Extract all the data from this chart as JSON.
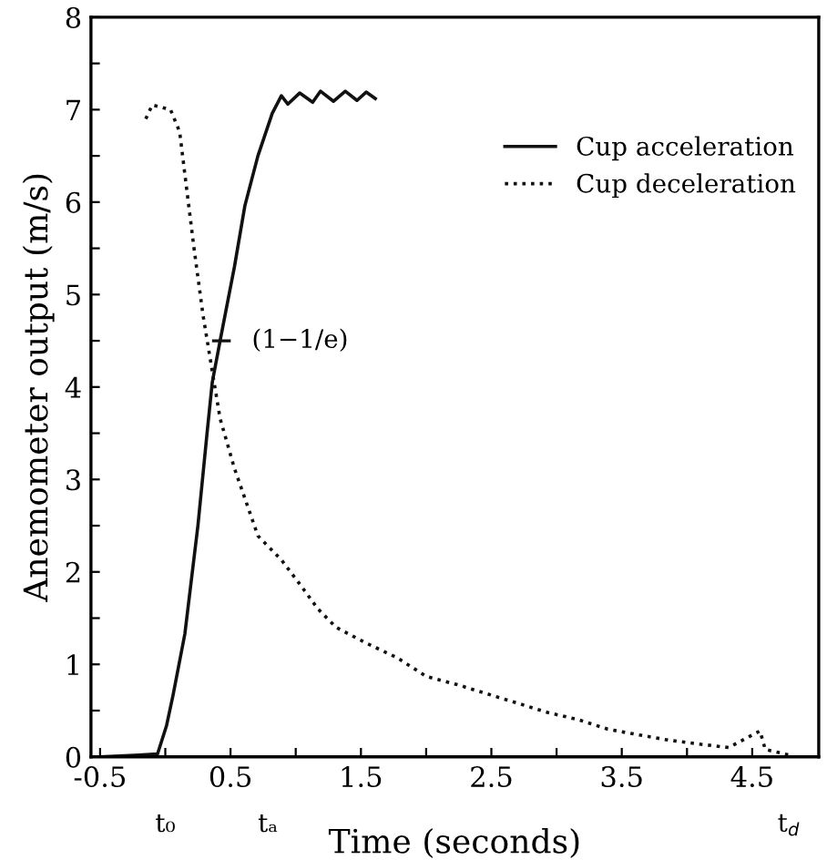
{
  "chart_data": {
    "type": "line",
    "xlabel": "Time (seconds)",
    "ylabel": "Anemometer output (m/s)",
    "xlim": [
      -0.57,
      5.01
    ],
    "ylim": [
      0,
      8
    ],
    "xticks": [
      -0.5,
      {
        "value": 0,
        "label": null
      },
      0.5,
      {
        "value": 1,
        "label": null
      },
      1.5,
      {
        "value": 2,
        "label": null
      },
      2.5,
      {
        "value": 3,
        "label": null
      },
      3.5,
      {
        "value": 4,
        "label": null
      },
      4.5
    ],
    "yticks": [
      0,
      {
        "value": 0.5,
        "label": null
      },
      1,
      {
        "value": 1.5,
        "label": null
      },
      2,
      {
        "value": 2.5,
        "label": null
      },
      3,
      {
        "value": 3.5,
        "label": null
      },
      4,
      {
        "value": 4.5,
        "label": null
      },
      5,
      {
        "value": 5.5,
        "label": null
      },
      6,
      {
        "value": 6.5,
        "label": null
      },
      7,
      {
        "value": 7.5,
        "label": null
      },
      8
    ],
    "grid": false,
    "legend": "top right",
    "series": [
      {
        "name": "Cup acceleration",
        "color": "#111111",
        "line_style": "solid",
        "x": [
          -0.5,
          -0.2,
          -0.06,
          0.01,
          0.06,
          0.15,
          0.25,
          0.32,
          0.36,
          0.42,
          0.53,
          0.61,
          0.71,
          0.82,
          0.89,
          0.94,
          1.03,
          1.13,
          1.19,
          1.29,
          1.38,
          1.47,
          1.54,
          1.61
        ],
        "values": [
          0,
          0.02,
          0.03,
          0.34,
          0.67,
          1.33,
          2.5,
          3.5,
          4.05,
          4.5,
          5.3,
          5.96,
          6.5,
          6.96,
          7.15,
          7.06,
          7.18,
          7.08,
          7.2,
          7.09,
          7.2,
          7.1,
          7.19,
          7.12
        ]
      },
      {
        "name": "Cup deceleration",
        "color": "#111111",
        "line_style": "dotted",
        "x": [
          -0.15,
          -0.1,
          0.04,
          0.11,
          0.15,
          0.22,
          0.29,
          0.36,
          0.42,
          0.53,
          0.71,
          0.89,
          1.03,
          1.17,
          1.31,
          1.54,
          1.78,
          2.0,
          2.24,
          2.47,
          2.7,
          2.93,
          3.17,
          3.39,
          3.62,
          3.86,
          4.08,
          4.32,
          4.56,
          4.6,
          4.78
        ],
        "values": [
          6.9,
          7.05,
          7.0,
          6.76,
          6.3,
          5.5,
          4.77,
          4.17,
          3.66,
          3.12,
          2.39,
          2.13,
          1.87,
          1.6,
          1.4,
          1.23,
          1.07,
          0.87,
          0.78,
          0.68,
          0.58,
          0.48,
          0.4,
          0.3,
          0.24,
          0.18,
          0.14,
          0.1,
          0.28,
          0.08,
          0.02
        ]
      }
    ],
    "annotations": [
      {
        "text": "(1−1/e)",
        "x": 0.43,
        "y": 4.5
      },
      {
        "text": "t₀",
        "x": 0,
        "y": 0
      },
      "tₐ",
      {
        "text": "t$_{d}$",
        "x": 4.78,
        "y": 0
      }
    ]
  }
}
